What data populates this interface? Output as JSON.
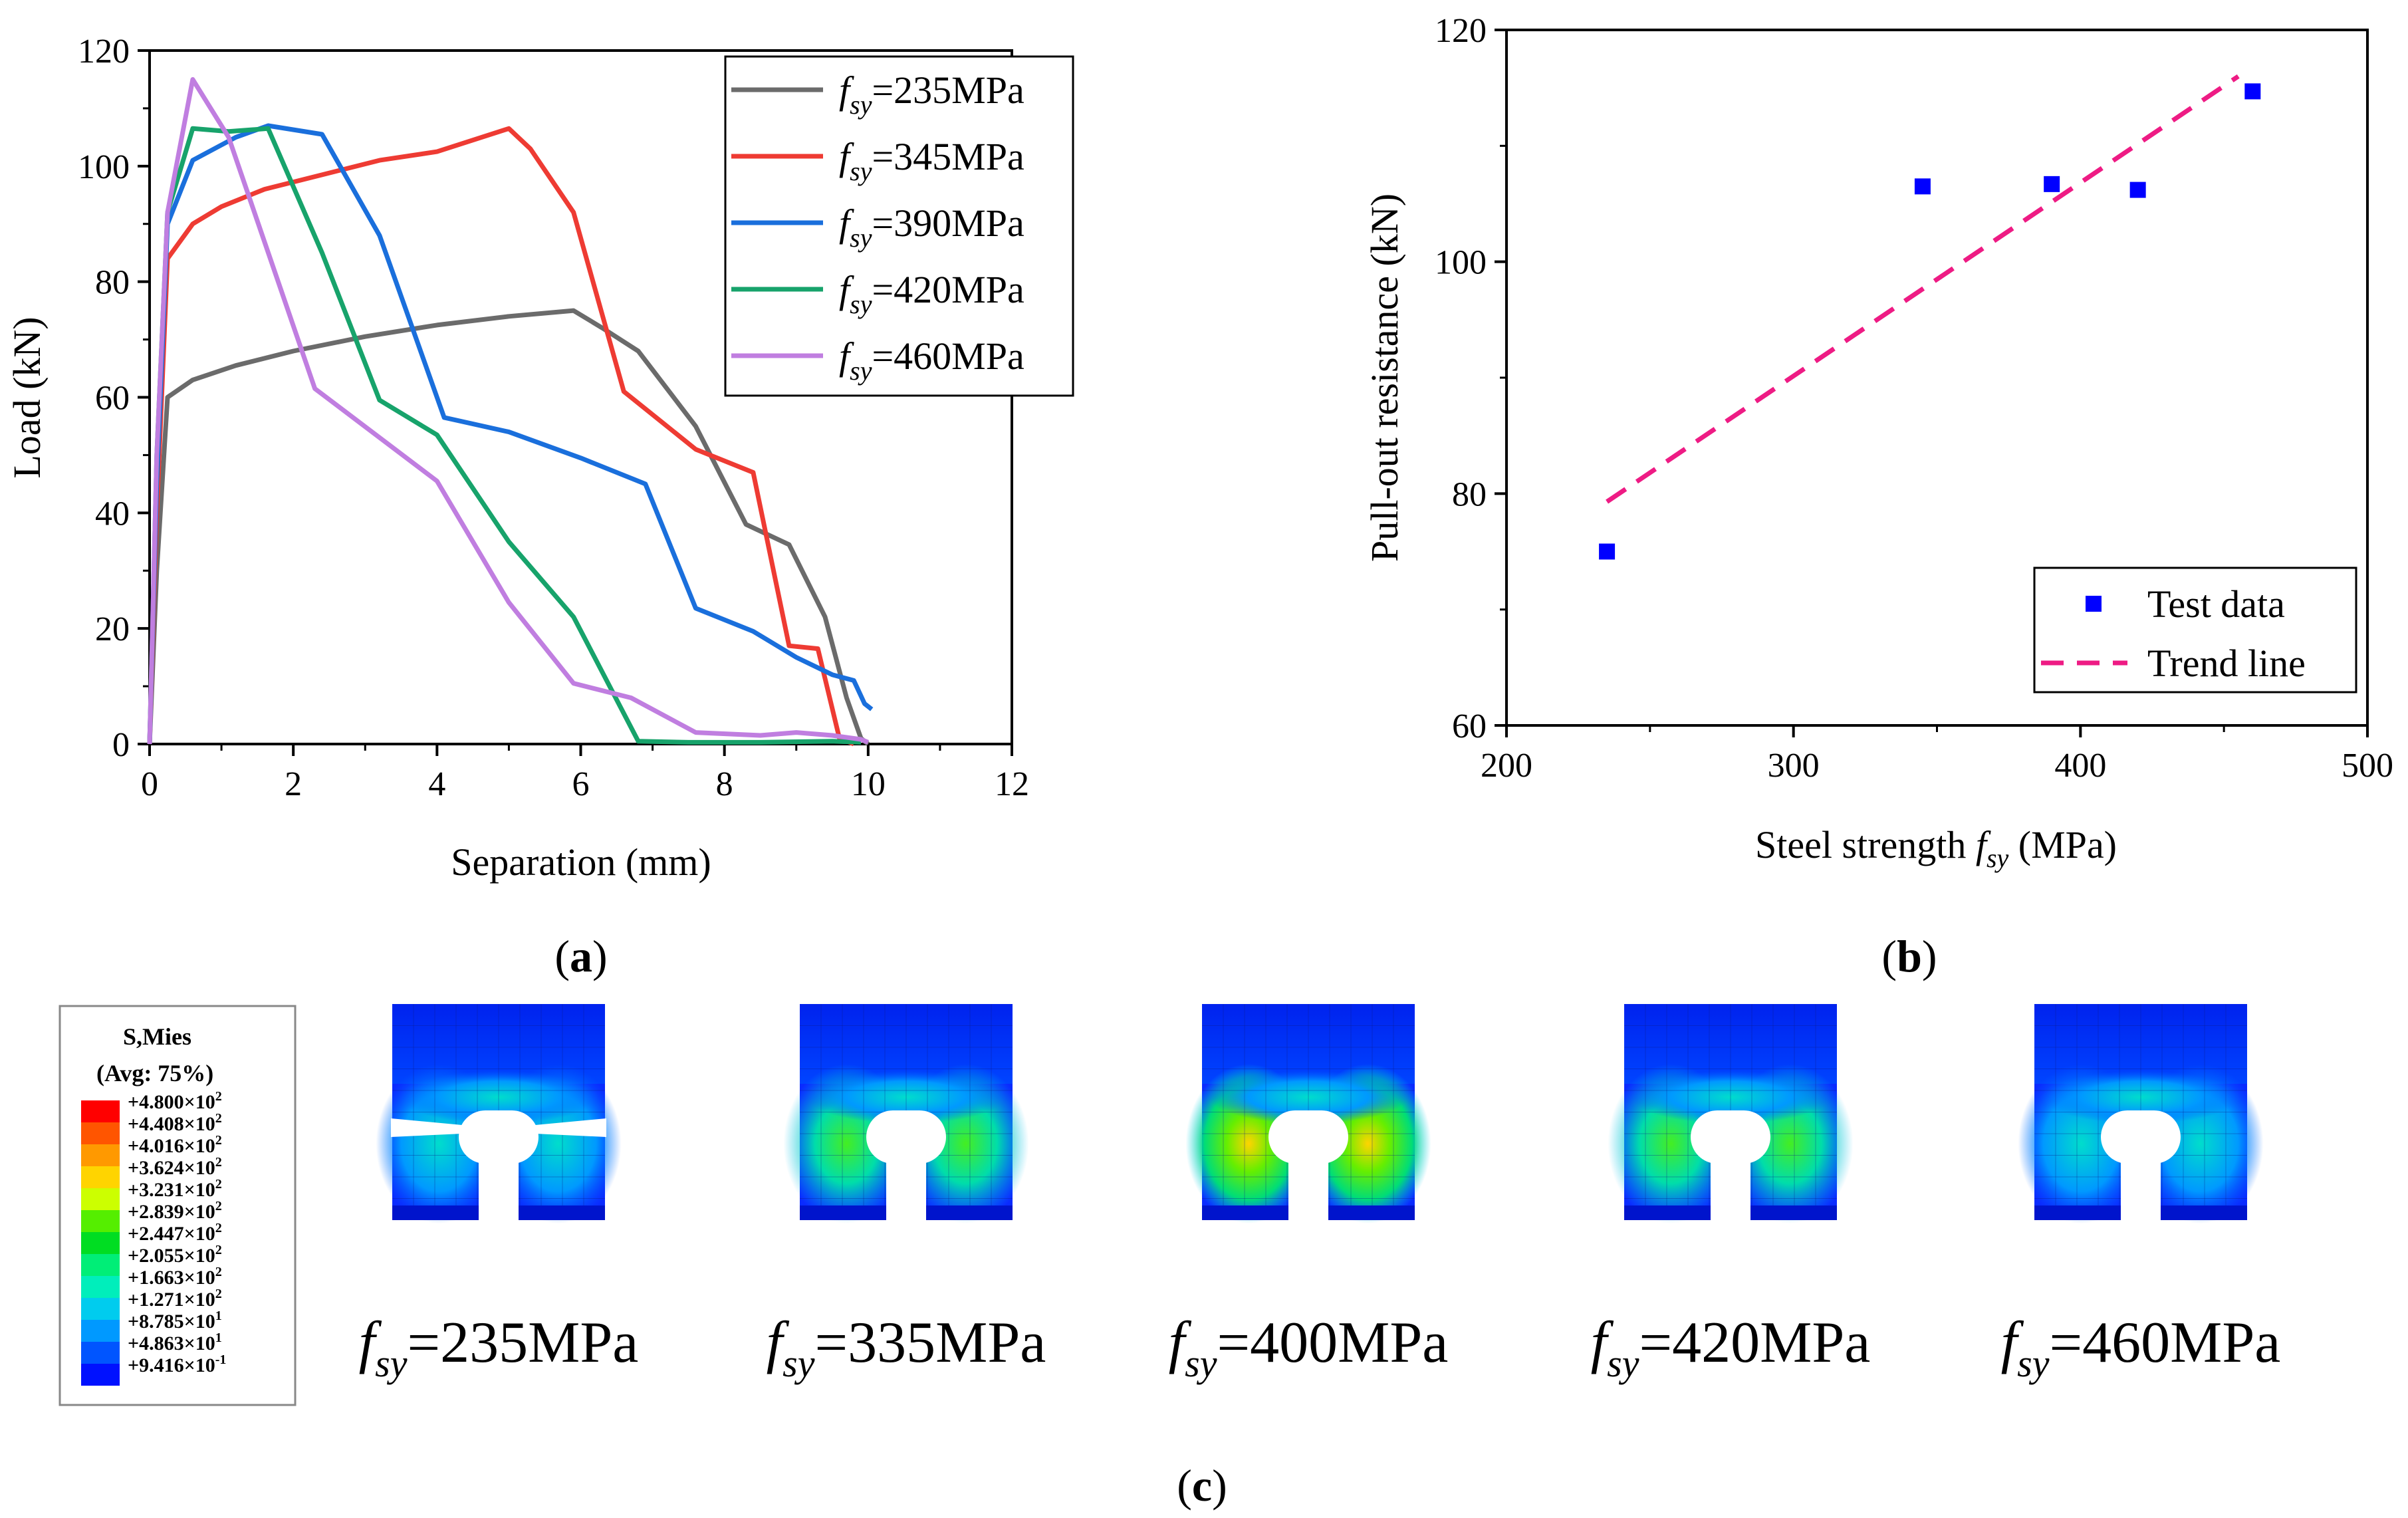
{
  "panel_labels": {
    "a": "a",
    "b": "b",
    "c": "c"
  },
  "chart_data": [
    {
      "id": "a",
      "type": "line",
      "xlabel": "Separation (mm)",
      "ylabel": "Load (kN)",
      "xlim": [
        0,
        12
      ],
      "ylim": [
        0,
        120
      ],
      "xticks": [
        0,
        2,
        4,
        6,
        8,
        10,
        12
      ],
      "yticks": [
        0,
        20,
        40,
        60,
        80,
        100,
        120
      ],
      "grid": false,
      "legend_position": "top-right",
      "series": [
        {
          "name_prefix": "f",
          "name_sub": "sy",
          "name_value": "=235MPa",
          "color": "#6b6b6b",
          "points": [
            [
              0,
              0
            ],
            [
              0.1,
              30
            ],
            [
              0.25,
              60
            ],
            [
              0.6,
              63
            ],
            [
              1.2,
              65.5
            ],
            [
              2,
              68
            ],
            [
              3,
              70.5
            ],
            [
              4,
              72.5
            ],
            [
              5,
              74
            ],
            [
              5.9,
              75
            ],
            [
              6.3,
              72
            ],
            [
              6.8,
              68
            ],
            [
              7.6,
              55
            ],
            [
              8.3,
              38
            ],
            [
              8.9,
              34.5
            ],
            [
              9.4,
              22
            ],
            [
              9.7,
              8
            ],
            [
              9.9,
              1
            ],
            [
              10,
              0
            ]
          ]
        },
        {
          "name_prefix": "f",
          "name_sub": "sy",
          "name_value": "=345MPa",
          "color": "#ee3b33",
          "points": [
            [
              0,
              0
            ],
            [
              0.1,
              40
            ],
            [
              0.25,
              84
            ],
            [
              0.6,
              90
            ],
            [
              1,
              93
            ],
            [
              1.6,
              96
            ],
            [
              2.4,
              98.5
            ],
            [
              3.2,
              101
            ],
            [
              4,
              102.5
            ],
            [
              5,
              106.5
            ],
            [
              5.3,
              103
            ],
            [
              5.9,
              92
            ],
            [
              6.6,
              61
            ],
            [
              7.6,
              51
            ],
            [
              8.4,
              47
            ],
            [
              8.9,
              17
            ],
            [
              9.3,
              16.5
            ],
            [
              9.6,
              1
            ],
            [
              9.8,
              0
            ]
          ]
        },
        {
          "name_prefix": "f",
          "name_sub": "sy",
          "name_value": "=390MPa",
          "color": "#1a6fdc",
          "points": [
            [
              0,
              0
            ],
            [
              0.1,
              45
            ],
            [
              0.25,
              90
            ],
            [
              0.6,
              101
            ],
            [
              1.2,
              105
            ],
            [
              1.65,
              107
            ],
            [
              2.4,
              105.5
            ],
            [
              3.2,
              88
            ],
            [
              4.1,
              56.5
            ],
            [
              5,
              54
            ],
            [
              6,
              49.5
            ],
            [
              6.9,
              45
            ],
            [
              7.6,
              23.5
            ],
            [
              8.4,
              19.5
            ],
            [
              9,
              15
            ],
            [
              9.5,
              12
            ],
            [
              9.8,
              11
            ],
            [
              9.95,
              7
            ],
            [
              10.05,
              6
            ]
          ]
        },
        {
          "name_prefix": "f",
          "name_sub": "sy",
          "name_value": "=420MPa",
          "color": "#17a36b",
          "points": [
            [
              0,
              0
            ],
            [
              0.1,
              50
            ],
            [
              0.25,
              92
            ],
            [
              0.6,
              106.5
            ],
            [
              1.1,
              106
            ],
            [
              1.65,
              106.5
            ],
            [
              2.4,
              85
            ],
            [
              3.2,
              59.5
            ],
            [
              4,
              53.5
            ],
            [
              5,
              35
            ],
            [
              5.9,
              22
            ],
            [
              6.8,
              0.5
            ],
            [
              7.5,
              0.3
            ],
            [
              8.5,
              0.3
            ],
            [
              9.5,
              0.5
            ],
            [
              9.9,
              0.3
            ]
          ]
        },
        {
          "name_prefix": "f",
          "name_sub": "sy",
          "name_value": "=460MPa",
          "color": "#c07ee0",
          "points": [
            [
              0,
              0
            ],
            [
              0.1,
              50
            ],
            [
              0.25,
              92
            ],
            [
              0.6,
              115
            ],
            [
              1.1,
              105
            ],
            [
              2.3,
              61.5
            ],
            [
              4,
              45.5
            ],
            [
              5,
              24.5
            ],
            [
              5.9,
              10.5
            ],
            [
              6.7,
              8
            ],
            [
              7.6,
              2
            ],
            [
              8.5,
              1.5
            ],
            [
              9,
              2
            ],
            [
              9.5,
              1.5
            ],
            [
              9.9,
              0.8
            ],
            [
              10,
              0.3
            ]
          ]
        }
      ]
    },
    {
      "id": "b",
      "type": "scatter",
      "xlabel_prefix": "Steel strength ",
      "xlabel_var": "f",
      "xlabel_sub": "sy",
      "xlabel_suffix": " (MPa)",
      "ylabel": "Pull-out resistance (kN)",
      "xlim": [
        200,
        500
      ],
      "ylim": [
        60,
        120
      ],
      "xticks": [
        200,
        300,
        400,
        500
      ],
      "yticks": [
        60,
        80,
        100,
        120
      ],
      "grid": false,
      "legend_position": "bottom-right",
      "series": [
        {
          "name": "Test data",
          "kind": "markers",
          "color": "#0000ff",
          "points": [
            [
              235,
              75
            ],
            [
              345,
              106.5
            ],
            [
              390,
              106.7
            ],
            [
              420,
              106.2
            ],
            [
              460,
              114.7
            ]
          ]
        },
        {
          "name": "Trend line",
          "kind": "dashed",
          "color": "#ee1b84",
          "points": [
            [
              235,
              79.3
            ],
            [
              455,
              116
            ]
          ]
        }
      ]
    }
  ],
  "contour_legend": {
    "title_line1": "S,Mies",
    "title_line2": "(Avg: 75%)",
    "colors": [
      "#ff0000",
      "#ff5500",
      "#ff9900",
      "#ffd400",
      "#ccff00",
      "#55ee00",
      "#00dd22",
      "#00ee77",
      "#00eebb",
      "#00ccee",
      "#0099ff",
      "#0055ff",
      "#0011ff"
    ],
    "entries": [
      {
        "mant": "+4.800×10",
        "exp": "2"
      },
      {
        "mant": "+4.408×10",
        "exp": "2"
      },
      {
        "mant": "+4.016×10",
        "exp": "2"
      },
      {
        "mant": "+3.624×10",
        "exp": "2"
      },
      {
        "mant": "+3.231×10",
        "exp": "2"
      },
      {
        "mant": "+2.839×10",
        "exp": "2"
      },
      {
        "mant": "+2.447×10",
        "exp": "2"
      },
      {
        "mant": "+2.055×10",
        "exp": "2"
      },
      {
        "mant": "+1.663×10",
        "exp": "2"
      },
      {
        "mant": "+1.271×10",
        "exp": "2"
      },
      {
        "mant": "+8.785×10",
        "exp": "1"
      },
      {
        "mant": "+4.863×10",
        "exp": "1"
      },
      {
        "mant": "+9.416×10",
        "exp": "-1"
      }
    ]
  },
  "contour_plots": [
    {
      "var": "f",
      "sub": "sy",
      "value": "=235MPa",
      "stress_level": "low",
      "cracked": true
    },
    {
      "var": "f",
      "sub": "sy",
      "value": "=335MPa",
      "stress_level": "medium",
      "cracked": false
    },
    {
      "var": "f",
      "sub": "sy",
      "value": "=400MPa",
      "stress_level": "high",
      "cracked": false
    },
    {
      "var": "f",
      "sub": "sy",
      "value": "=420MPa",
      "stress_level": "mid-high",
      "cracked": false
    },
    {
      "var": "f",
      "sub": "sy",
      "value": "=460MPa",
      "stress_level": "low",
      "cracked": false
    }
  ]
}
